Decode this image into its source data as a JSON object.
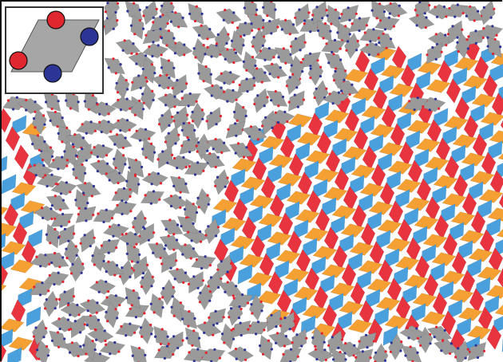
{
  "image": {
    "kind": "self-assembly simulation snapshot",
    "background": "#ffffff",
    "particle_shape": "rhombus with two red and two blue patches",
    "colors": {
      "monomer": "#9a9a9a",
      "crystal_red": "#e8343f",
      "crystal_blue": "#4aa0dd",
      "crystal_orange": "#f5a033",
      "patch_red": "#e0262f",
      "patch_blue": "#2c3596",
      "inset_rhombus": "#a6a6a6",
      "inset_border": "#333333",
      "frame": "#111111"
    },
    "icon_names": [
      "rhombus-particle-icon",
      "red-patch-icon",
      "blue-patch-icon"
    ]
  }
}
